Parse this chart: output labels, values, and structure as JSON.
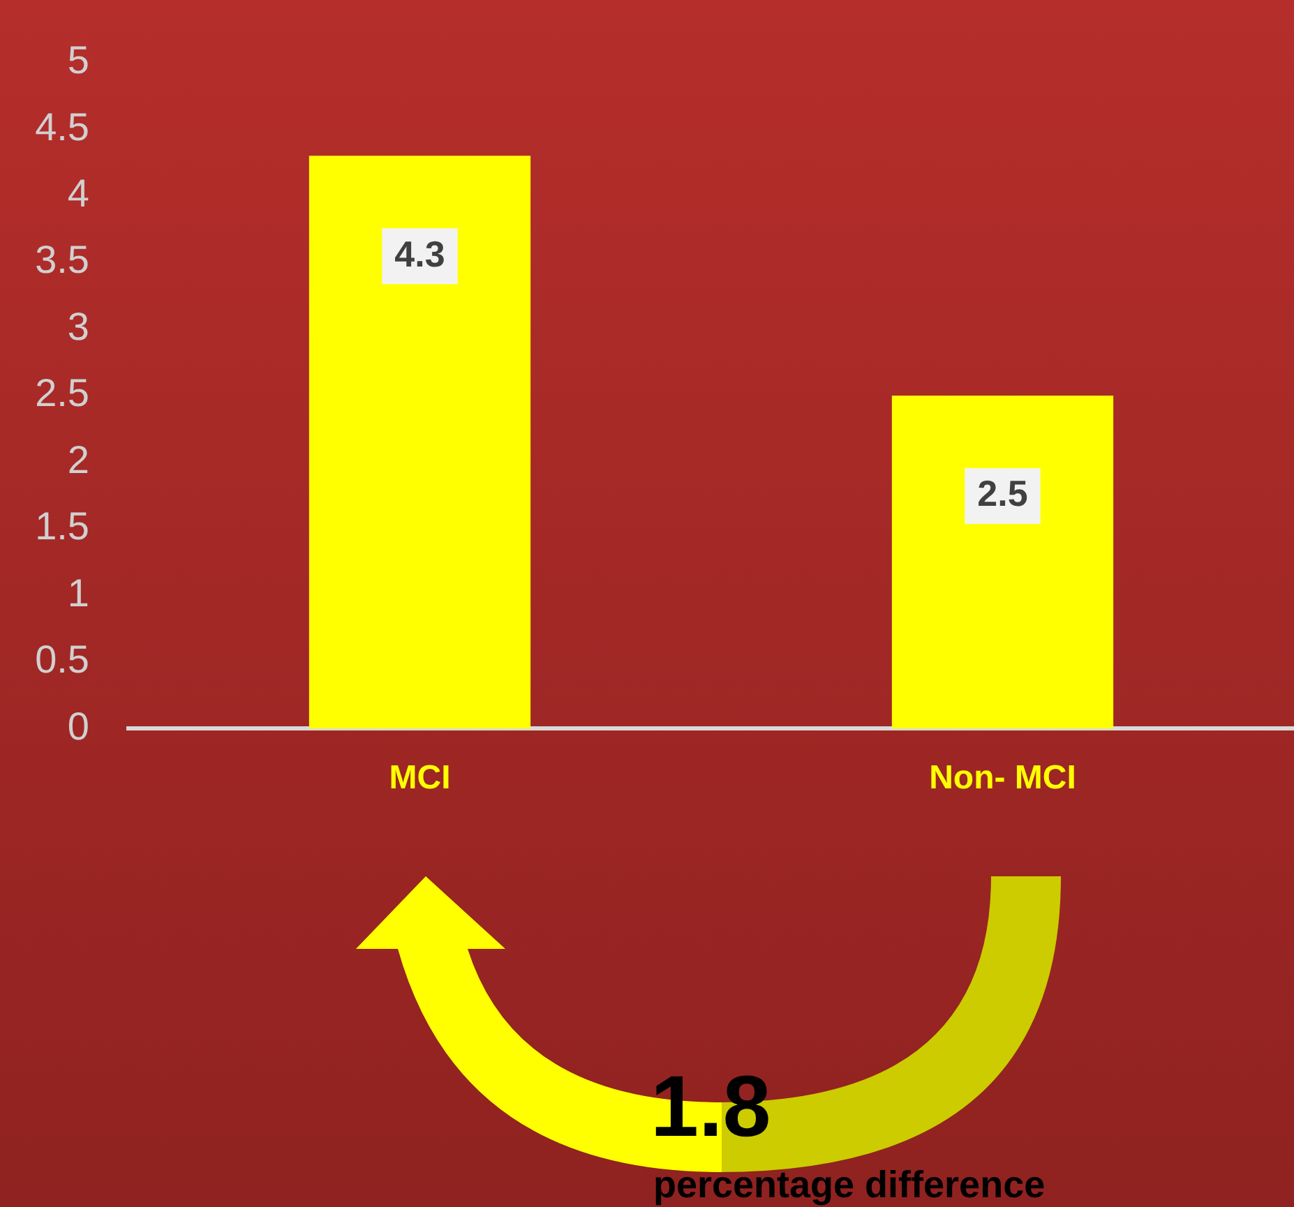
{
  "chart_data": {
    "type": "bar",
    "categories": [
      "MCI",
      "Non- MCI"
    ],
    "values": [
      4.3,
      2.5
    ],
    "color": "#ffff00",
    "ylim": [
      0,
      5
    ],
    "yticks": [
      0,
      0.5,
      1,
      1.5,
      2,
      2.5,
      3,
      3.5,
      4,
      4.5,
      5
    ],
    "grid": false,
    "legend": false,
    "data_labels": true,
    "annotations": [
      "1.8",
      "percentage difference"
    ]
  }
}
